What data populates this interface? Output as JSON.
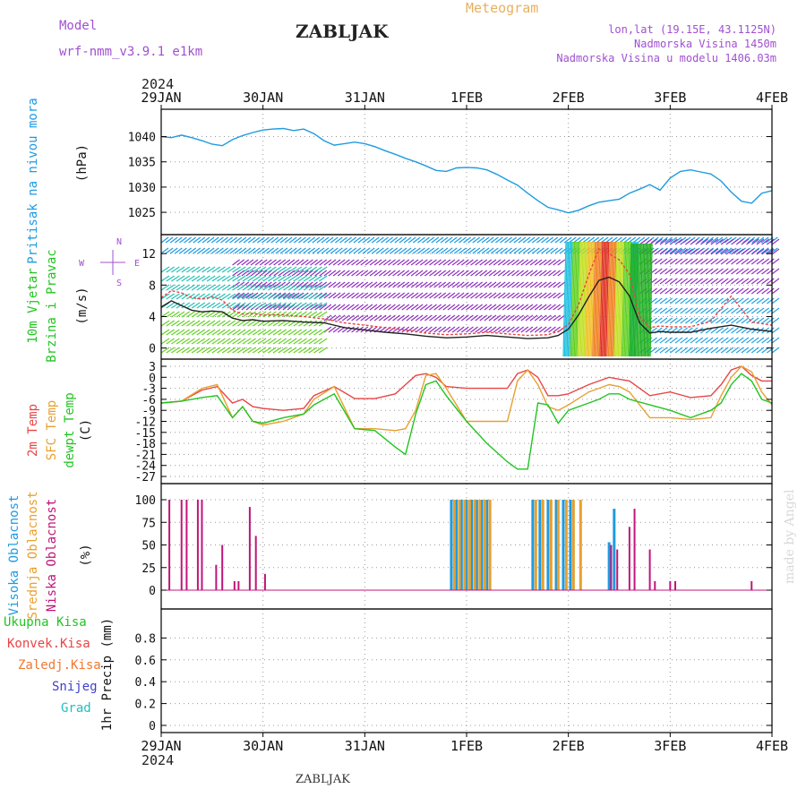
{
  "header": {
    "model_label": "Model",
    "model_name": "wrf-nmm_v3.9.1  e1km",
    "station": "ZABLJAK",
    "product": "Meteogram",
    "coords": "lon,lat (19.15E, 43.1125N)",
    "elevation": "Nadmorska Visina 1450m",
    "model_elevation": "Nadmorska Visina u modelu 1406.03m",
    "year_top": "2024",
    "year_bottom": "2024",
    "footer_station": "ZABLJAK",
    "credit": "made by Angel"
  },
  "colors": {
    "pressure": "#1E9BE0",
    "temp2m": "#E84545",
    "sfc_temp": "#E8A030",
    "dewpoint": "#22C422",
    "cloud_high": "#1E9BE0",
    "cloud_mid": "#E8A030",
    "cloud_low": "#C0157A",
    "wind_speed": "#222222",
    "gust": "#E84545",
    "purple_text": "#A050D0",
    "orange_text": "#E8B060"
  },
  "chart_data": {
    "type": "line",
    "x_ticks": [
      "29JAN",
      "30JAN",
      "31JAN",
      "1FEB",
      "2FEB",
      "3FEB",
      "4FEB"
    ],
    "x_range_days": [
      0,
      6
    ],
    "panels": [
      {
        "id": "pressure",
        "type": "line",
        "ylabel": [
          "Pritisak na nivou mora",
          "(hPa)"
        ],
        "ylim": [
          1022,
          1044
        ],
        "yticks": [
          1025,
          1030,
          1035,
          1040
        ],
        "series": [
          {
            "key": "pressure",
            "x": [
              0,
              0.1,
              0.2,
              0.3,
              0.4,
              0.5,
              0.6,
              0.7,
              0.8,
              0.9,
              1.0,
              1.1,
              1.2,
              1.3,
              1.4,
              1.5,
              1.6,
              1.7,
              1.8,
              1.9,
              2.0,
              2.1,
              2.2,
              2.3,
              2.4,
              2.5,
              2.6,
              2.7,
              2.8,
              2.9,
              3.0,
              3.1,
              3.2,
              3.3,
              3.4,
              3.5,
              3.6,
              3.7,
              3.8,
              3.9,
              4.0,
              4.1,
              4.2,
              4.3,
              4.4,
              4.5,
              4.6,
              4.7,
              4.8,
              4.9,
              5.0,
              5.1,
              5.2,
              5.3,
              5.4,
              5.5,
              5.6,
              5.7,
              5.8,
              5.9,
              6.0
            ],
            "y": [
              1040,
              1039.8,
              1040.3,
              1039.8,
              1039.2,
              1038.5,
              1038.2,
              1039.4,
              1040.2,
              1040.8,
              1041.3,
              1041.5,
              1041.6,
              1041.2,
              1041.5,
              1040.6,
              1039.2,
              1038.3,
              1038.6,
              1038.9,
              1038.6,
              1038.0,
              1037.2,
              1036.5,
              1035.7,
              1035.0,
              1034.2,
              1033.3,
              1033.1,
              1033.8,
              1033.9,
              1033.8,
              1033.4,
              1032.5,
              1031.4,
              1030.4,
              1028.8,
              1027.3,
              1026.0,
              1025.5,
              1024.9,
              1025.4,
              1026.3,
              1027.0,
              1027.3,
              1027.6,
              1028.8,
              1029.6,
              1030.5,
              1029.4,
              1031.8,
              1033.1,
              1033.4,
              1033.0,
              1032.6,
              1031.2,
              1029.0,
              1027.2,
              1026.8,
              1028.8,
              1029.3
            ]
          }
        ]
      },
      {
        "id": "wind",
        "type": "line",
        "ylabel": [
          "10m Vjetar",
          "Brzina i Pravac",
          "(m/s)"
        ],
        "compass": {
          "north": "N",
          "south": "S",
          "west": "W",
          "east": "E"
        },
        "ylim": [
          -0.5,
          13.5
        ],
        "yticks": [
          0,
          4,
          8,
          12
        ],
        "series": [
          {
            "key": "wind_speed",
            "x": [
              0,
              0.1,
              0.2,
              0.3,
              0.4,
              0.5,
              0.6,
              0.7,
              0.8,
              0.9,
              1.0,
              1.2,
              1.4,
              1.6,
              1.8,
              2.0,
              2.2,
              2.4,
              2.6,
              2.8,
              3.0,
              3.2,
              3.4,
              3.6,
              3.8,
              3.9,
              4.0,
              4.1,
              4.2,
              4.3,
              4.4,
              4.5,
              4.6,
              4.7,
              4.8,
              4.9,
              5.0,
              5.2,
              5.4,
              5.6,
              5.8,
              6.0
            ],
            "y": [
              5.2,
              6.0,
              5.4,
              4.8,
              4.6,
              4.7,
              4.6,
              3.8,
              3.5,
              3.6,
              3.4,
              3.5,
              3.3,
              3.2,
              2.6,
              2.3,
              2.0,
              1.8,
              1.5,
              1.3,
              1.4,
              1.6,
              1.4,
              1.2,
              1.3,
              1.6,
              2.4,
              4.2,
              6.5,
              8.6,
              9.0,
              8.4,
              6.6,
              3.2,
              1.9,
              2.1,
              2.0,
              2.0,
              2.5,
              2.9,
              2.4,
              2.1
            ]
          },
          {
            "key": "gust",
            "x": [
              0,
              0.1,
              0.2,
              0.3,
              0.4,
              0.5,
              0.6,
              0.7,
              0.8,
              0.9,
              1.0,
              1.2,
              1.4,
              1.6,
              1.8,
              2.0,
              2.2,
              2.4,
              2.6,
              2.8,
              3.0,
              3.2,
              3.4,
              3.6,
              3.8,
              3.9,
              4.0,
              4.1,
              4.2,
              4.3,
              4.4,
              4.5,
              4.6,
              4.7,
              4.8,
              4.9,
              5.0,
              5.2,
              5.4,
              5.6,
              5.8,
              6.0
            ],
            "y": [
              6.4,
              7.3,
              7.0,
              6.4,
              6.2,
              6.5,
              6.1,
              4.8,
              4.3,
              4.4,
              4.2,
              4.2,
              4.0,
              3.7,
              3.2,
              2.9,
              2.6,
              2.3,
              1.9,
              1.7,
              1.8,
              2.0,
              1.8,
              1.6,
              1.7,
              2.1,
              3.0,
              5.5,
              9.3,
              12.6,
              12.0,
              11.2,
              9.4,
              4.0,
              2.6,
              2.8,
              2.7,
              2.7,
              3.4,
              6.6,
              3.3,
              2.9
            ]
          }
        ]
      },
      {
        "id": "temperature",
        "type": "line",
        "ylabel": [
          "2m Temp",
          "SFC Temp",
          "dewpt Temp",
          "(C)"
        ],
        "ylim": [
          -27,
          3
        ],
        "yticks": [
          3,
          0,
          -3,
          -6,
          -9,
          -12,
          -15,
          -18,
          -21,
          -24,
          -27
        ],
        "series": [
          {
            "key": "temp2m",
            "x": [
              0,
              0.2,
              0.4,
              0.55,
              0.7,
              0.8,
              0.9,
              1.0,
              1.2,
              1.4,
              1.5,
              1.7,
              1.9,
              2.1,
              2.3,
              2.4,
              2.5,
              2.6,
              2.7,
              2.8,
              3.0,
              3.2,
              3.4,
              3.5,
              3.6,
              3.7,
              3.8,
              3.9,
              4.0,
              4.2,
              4.3,
              4.4,
              4.5,
              4.6,
              4.8,
              5.0,
              5.2,
              5.4,
              5.5,
              5.6,
              5.7,
              5.8,
              5.9,
              6.0
            ],
            "y": [
              -7,
              -6.5,
              -3.5,
              -2.5,
              -7,
              -6,
              -8,
              -8.5,
              -9,
              -8.5,
              -5,
              -2.5,
              -5.8,
              -5.8,
              -4.5,
              -2,
              0.5,
              1,
              0,
              -2.5,
              -3,
              -3,
              -3,
              1,
              2,
              0,
              -5,
              -5,
              -4.5,
              -2,
              -1,
              0,
              -0.5,
              -1,
              -5,
              -4,
              -5.5,
              -5,
              -2,
              2,
              3,
              0.5,
              -1,
              -1
            ]
          },
          {
            "key": "sfc_temp",
            "x": [
              0,
              0.2,
              0.4,
              0.55,
              0.7,
              0.8,
              0.9,
              1.0,
              1.2,
              1.4,
              1.5,
              1.7,
              1.9,
              2.1,
              2.3,
              2.4,
              2.5,
              2.6,
              2.7,
              2.8,
              3.0,
              3.2,
              3.4,
              3.5,
              3.6,
              3.7,
              3.8,
              3.9,
              4.0,
              4.2,
              4.3,
              4.4,
              4.5,
              4.6,
              4.8,
              5.0,
              5.2,
              5.4,
              5.5,
              5.6,
              5.7,
              5.8,
              5.9,
              6.0
            ],
            "y": [
              -7,
              -6.5,
              -3,
              -2,
              -11,
              -8,
              -12,
              -13,
              -12,
              -10,
              -6,
              -2.5,
              -14,
              -14,
              -14.5,
              -14,
              -9,
              0.5,
              1,
              -3,
              -12,
              -12,
              -12,
              -1,
              2,
              -2,
              -8,
              -9,
              -7.5,
              -4,
              -3,
              -2,
              -2.5,
              -4,
              -11,
              -11,
              -11.5,
              -11,
              -5,
              0,
              3,
              1.5,
              -4,
              -7.5
            ]
          },
          {
            "key": "dewpoint",
            "x": [
              0,
              0.2,
              0.4,
              0.55,
              0.7,
              0.8,
              0.9,
              1.0,
              1.2,
              1.4,
              1.5,
              1.7,
              1.9,
              2.1,
              2.3,
              2.4,
              2.5,
              2.6,
              2.7,
              2.8,
              3.0,
              3.2,
              3.4,
              3.5,
              3.6,
              3.7,
              3.8,
              3.9,
              4.0,
              4.2,
              4.3,
              4.4,
              4.5,
              4.6,
              4.8,
              5.0,
              5.2,
              5.4,
              5.5,
              5.6,
              5.7,
              5.8,
              5.9,
              6.0
            ],
            "y": [
              -7,
              -6.5,
              -5.5,
              -5,
              -11,
              -8,
              -12,
              -12.5,
              -11,
              -10,
              -7.5,
              -4.5,
              -14,
              -14.5,
              -19,
              -21,
              -10,
              -2,
              -1,
              -5,
              -12,
              -18,
              -23,
              -25,
              -25,
              -7,
              -7.5,
              -12.5,
              -9,
              -7,
              -6,
              -4.5,
              -4.5,
              -6,
              -7.5,
              -9,
              -11,
              -9,
              -7,
              -2,
              1,
              -1,
              -6,
              -7
            ]
          }
        ]
      },
      {
        "id": "clouds",
        "type": "bar",
        "ylabel": [
          "Visoka Oblacnost",
          "Srednja Oblacnost",
          "Niska Oblacnost",
          "(%)"
        ],
        "ylim": [
          0,
          100
        ],
        "yticks": [
          0,
          25,
          50,
          75,
          100
        ],
        "series": [
          {
            "key": "cloud_low",
            "x": [
              0.08,
              0.2,
              0.25,
              0.36,
              0.4,
              0.54,
              0.6,
              0.72,
              0.76,
              0.87,
              0.93,
              1.02
            ],
            "values": [
              100,
              100,
              100,
              100,
              100,
              28,
              50,
              10,
              10,
              92,
              60,
              18
            ]
          },
          {
            "key": "cloud_high",
            "x": [
              2.85,
              2.9,
              2.95,
              3.0,
              3.05,
              3.1,
              3.15,
              3.2,
              3.65,
              3.72,
              3.8,
              3.88,
              3.95,
              4.02,
              4.4,
              4.45
            ],
            "values": [
              100,
              100,
              100,
              100,
              100,
              100,
              100,
              100,
              100,
              100,
              100,
              100,
              100,
              100,
              53,
              90
            ]
          },
          {
            "key": "cloud_mid",
            "x": [
              2.88,
              2.93,
              2.98,
              3.03,
              3.08,
              3.13,
              3.18,
              3.23,
              3.68,
              3.75,
              3.83,
              3.9,
              3.98,
              4.05,
              4.12
            ],
            "values": [
              100,
              100,
              100,
              100,
              100,
              100,
              100,
              100,
              100,
              100,
              100,
              100,
              100,
              100,
              100
            ]
          },
          {
            "key": "cloud_low",
            "x": [
              4.42,
              4.48,
              4.6,
              4.65,
              4.8,
              4.85,
              5.0,
              5.05,
              5.8
            ],
            "values": [
              50,
              45,
              70,
              90,
              45,
              10,
              10,
              10,
              10
            ]
          }
        ]
      },
      {
        "id": "precip",
        "type": "line",
        "ylabel": [
          "1hr Precip (mm)"
        ],
        "legend": [
          {
            "label": "Ukupna  Kisa",
            "color": "#22C422"
          },
          {
            "label": "Konvek.Kisa",
            "color": "#E84545"
          },
          {
            "label": "Zaledj.Kisa",
            "color": "#F07830"
          },
          {
            "label": "Snijeg",
            "color": "#4040D0"
          },
          {
            "label": "Grad",
            "color": "#20C0C0"
          }
        ],
        "ylim": [
          0,
          1
        ],
        "yticks": [
          0,
          0.2,
          0.4,
          0.6,
          0.8
        ],
        "series": []
      }
    ]
  }
}
